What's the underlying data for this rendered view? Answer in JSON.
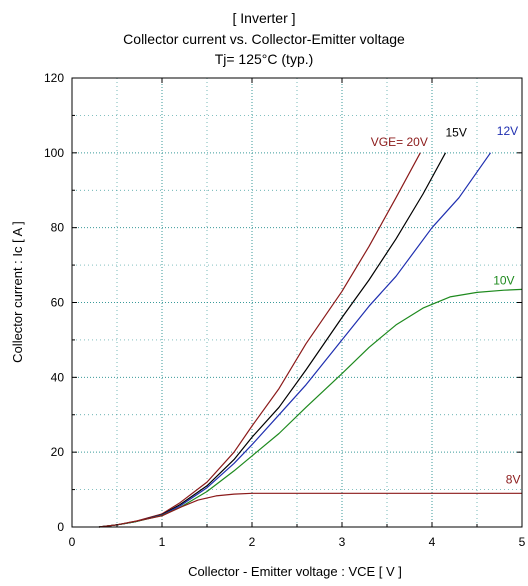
{
  "header": {
    "line1": "[ Inverter ]",
    "line2": "Collector current  vs.  Collector-Emitter voltage",
    "line3": "Tj= 125°C  (typ.)"
  },
  "chart_data": {
    "type": "line",
    "title": "[ Inverter ] Collector current vs. Collector-Emitter voltage Tj= 125°C (typ.)",
    "xlabel": "Collector - Emitter voltage  :  VCE  [ V ]",
    "ylabel": "Collector current  :  Ic  [ A ]",
    "xlim": [
      0,
      5
    ],
    "ylim": [
      0,
      120
    ],
    "xticks": [
      0,
      1,
      2,
      3,
      4,
      5
    ],
    "yticks": [
      0,
      20,
      40,
      60,
      80,
      100,
      120
    ],
    "grid": true,
    "series": [
      {
        "name": "VGE= 20V",
        "color": "#8b1a1a",
        "x": [
          0.3,
          0.5,
          0.7,
          1.0,
          1.2,
          1.5,
          1.8,
          2.0,
          2.3,
          2.6,
          3.0,
          3.3,
          3.6,
          3.87
        ],
        "y": [
          0,
          0.6,
          1.5,
          3.5,
          6.5,
          12,
          20,
          27,
          37,
          49,
          63,
          75,
          88,
          100
        ]
      },
      {
        "name": "15V",
        "color": "#000000",
        "x": [
          0.3,
          0.5,
          0.7,
          1.0,
          1.2,
          1.5,
          1.8,
          2.0,
          2.3,
          2.6,
          3.0,
          3.3,
          3.6,
          3.9,
          4.15
        ],
        "y": [
          0,
          0.6,
          1.4,
          3.3,
          6,
          11,
          18,
          24,
          32,
          42,
          56,
          66,
          77,
          89,
          100
        ]
      },
      {
        "name": "12V",
        "color": "#1f2fb0",
        "x": [
          0.3,
          0.5,
          0.7,
          1.0,
          1.2,
          1.5,
          1.8,
          2.0,
          2.3,
          2.6,
          3.0,
          3.3,
          3.6,
          4.0,
          4.3,
          4.65
        ],
        "y": [
          0,
          0.6,
          1.4,
          3.2,
          5.6,
          10.5,
          17,
          22,
          30,
          38,
          50,
          59,
          67,
          80,
          88,
          100
        ]
      },
      {
        "name": "10V",
        "color": "#1e8a1e",
        "x": [
          0.3,
          0.5,
          0.7,
          1.0,
          1.2,
          1.5,
          1.8,
          2.0,
          2.3,
          2.6,
          3.0,
          3.3,
          3.6,
          3.9,
          4.2,
          4.5,
          4.8,
          5.0
        ],
        "y": [
          0,
          0.6,
          1.4,
          3.1,
          5.2,
          9.5,
          15,
          19,
          25,
          32,
          41,
          48,
          54,
          58.5,
          61.5,
          62.7,
          63.3,
          63.5
        ]
      },
      {
        "name": "8V",
        "color": "#8b1a1a",
        "x": [
          0.3,
          0.5,
          0.7,
          1.0,
          1.2,
          1.4,
          1.6,
          1.8,
          2.0,
          2.5,
          3.0,
          4.0,
          5.0
        ],
        "y": [
          0,
          0.6,
          1.5,
          3.0,
          5.2,
          7.2,
          8.3,
          8.8,
          9.0,
          9.0,
          9.0,
          9.0,
          9.0
        ]
      }
    ],
    "series_labels": [
      {
        "text": "VGE= 20V",
        "color": "#8b1a1a",
        "x": 3.32,
        "y": 101.8
      },
      {
        "text": "15V",
        "color": "#000000",
        "x": 4.15,
        "y": 104.3
      },
      {
        "text": "12V",
        "color": "#1f2fb0",
        "x": 4.72,
        "y": 104.8
      },
      {
        "text": "10V",
        "color": "#1e8a1e",
        "x": 4.68,
        "y": 64.8
      },
      {
        "text": "8V",
        "color": "#8b1a1a",
        "x": 4.82,
        "y": 11.6
      }
    ]
  }
}
